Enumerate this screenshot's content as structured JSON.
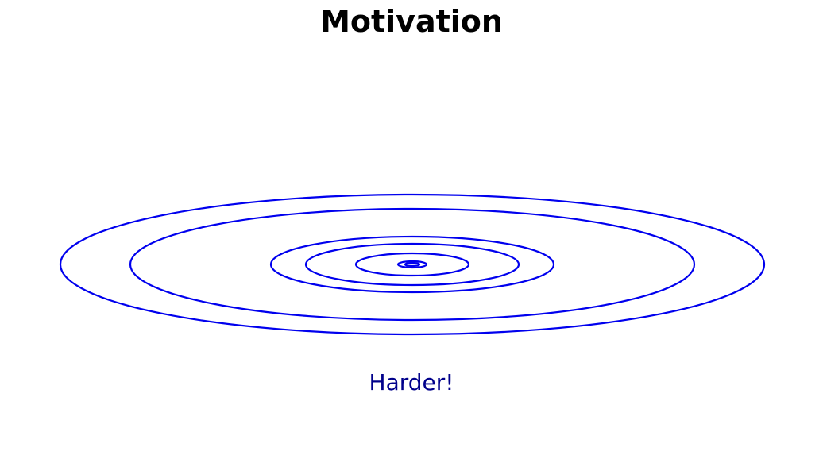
{
  "slide": {
    "title": "Motivation",
    "caption": "Harder!"
  },
  "colors": {
    "contour": "#0000ee",
    "caption": "#00008b",
    "title": "#000000"
  },
  "diagram": {
    "type": "contour",
    "shape": "elongated concentric ellipses",
    "level_count": 7
  }
}
